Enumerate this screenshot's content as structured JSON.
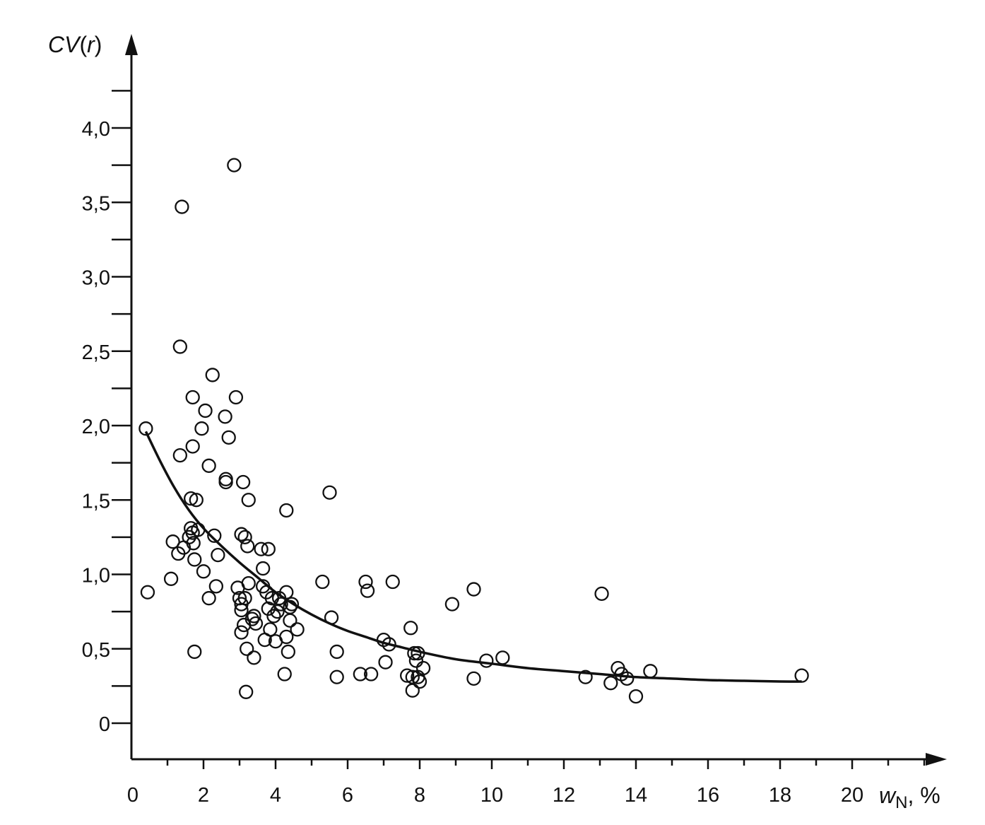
{
  "chart_data": {
    "type": "scatter",
    "title": "",
    "xlabel": {
      "var": "w",
      "sub": "N",
      "unit": ", %"
    },
    "ylabel": {
      "prefix": "CV",
      "open": "(",
      "var": "r",
      "close": ")"
    },
    "xlim": [
      0,
      22
    ],
    "ylim": [
      -0.2,
      4.6
    ],
    "x_tick_labels": [
      "0",
      "2",
      "4",
      "6",
      "8",
      "10",
      "12",
      "14",
      "16",
      "18",
      "20"
    ],
    "x_tick_values": [
      0,
      2,
      4,
      6,
      8,
      10,
      12,
      14,
      16,
      18,
      20
    ],
    "x_minor_step": 1,
    "y_tick_labels": [
      "0",
      "0,5",
      "1,0",
      "1,5",
      "2,0",
      "2,5",
      "3,0",
      "3,5",
      "4,0"
    ],
    "y_tick_values": [
      0,
      0.5,
      1.0,
      1.5,
      2.0,
      2.5,
      3.0,
      3.5,
      4.0
    ],
    "y_minor_step": 0.25,
    "grid": false,
    "legend": "none",
    "series": [
      {
        "kind": "points",
        "marker": "open-circle",
        "points": [
          [
            0.4,
            1.98
          ],
          [
            0.45,
            0.88
          ],
          [
            1.1,
            0.97
          ],
          [
            1.15,
            1.22
          ],
          [
            1.3,
            1.14
          ],
          [
            1.35,
            2.53
          ],
          [
            1.35,
            1.8
          ],
          [
            1.4,
            3.47
          ],
          [
            1.45,
            1.18
          ],
          [
            1.6,
            1.25
          ],
          [
            1.65,
            1.51
          ],
          [
            1.65,
            1.31
          ],
          [
            1.7,
            2.19
          ],
          [
            1.7,
            1.86
          ],
          [
            1.7,
            1.28
          ],
          [
            1.72,
            1.21
          ],
          [
            1.75,
            1.1
          ],
          [
            1.75,
            0.48
          ],
          [
            1.8,
            1.5
          ],
          [
            1.85,
            1.3
          ],
          [
            1.95,
            1.98
          ],
          [
            2.0,
            1.02
          ],
          [
            2.05,
            2.1
          ],
          [
            2.15,
            1.73
          ],
          [
            2.15,
            0.84
          ],
          [
            2.25,
            2.34
          ],
          [
            2.3,
            1.26
          ],
          [
            2.35,
            0.92
          ],
          [
            2.4,
            1.13
          ],
          [
            2.6,
            2.06
          ],
          [
            2.62,
            1.64
          ],
          [
            2.62,
            1.62
          ],
          [
            2.7,
            1.92
          ],
          [
            2.85,
            3.75
          ],
          [
            2.9,
            2.19
          ],
          [
            2.95,
            0.91
          ],
          [
            3.0,
            0.84
          ],
          [
            3.05,
            1.27
          ],
          [
            3.05,
            0.8
          ],
          [
            3.05,
            0.76
          ],
          [
            3.05,
            0.61
          ],
          [
            3.1,
            1.62
          ],
          [
            3.12,
            0.66
          ],
          [
            3.15,
            1.25
          ],
          [
            3.15,
            0.84
          ],
          [
            3.18,
            0.21
          ],
          [
            3.2,
            0.5
          ],
          [
            3.22,
            1.19
          ],
          [
            3.25,
            1.5
          ],
          [
            3.25,
            0.94
          ],
          [
            3.35,
            0.7
          ],
          [
            3.4,
            0.72
          ],
          [
            3.4,
            0.44
          ],
          [
            3.45,
            0.67
          ],
          [
            3.6,
            1.17
          ],
          [
            3.65,
            1.04
          ],
          [
            3.65,
            0.92
          ],
          [
            3.7,
            0.56
          ],
          [
            3.75,
            0.88
          ],
          [
            3.8,
            1.17
          ],
          [
            3.8,
            0.77
          ],
          [
            3.85,
            0.63
          ],
          [
            3.9,
            0.84
          ],
          [
            3.95,
            0.72
          ],
          [
            4.0,
            0.55
          ],
          [
            4.05,
            0.75
          ],
          [
            4.1,
            0.84
          ],
          [
            4.15,
            0.8
          ],
          [
            4.25,
            0.33
          ],
          [
            4.3,
            0.88
          ],
          [
            4.3,
            1.43
          ],
          [
            4.3,
            0.58
          ],
          [
            4.35,
            0.48
          ],
          [
            4.4,
            0.69
          ],
          [
            4.4,
            0.78
          ],
          [
            4.45,
            0.8
          ],
          [
            4.6,
            0.63
          ],
          [
            5.3,
            0.95
          ],
          [
            5.5,
            1.55
          ],
          [
            5.55,
            0.71
          ],
          [
            5.7,
            0.48
          ],
          [
            5.7,
            0.31
          ],
          [
            6.35,
            0.33
          ],
          [
            6.5,
            0.95
          ],
          [
            6.55,
            0.89
          ],
          [
            6.65,
            0.33
          ],
          [
            7.0,
            0.56
          ],
          [
            7.05,
            0.41
          ],
          [
            7.15,
            0.53
          ],
          [
            7.25,
            0.95
          ],
          [
            7.65,
            0.32
          ],
          [
            7.75,
            0.64
          ],
          [
            7.8,
            0.31
          ],
          [
            7.8,
            0.22
          ],
          [
            7.85,
            0.47
          ],
          [
            7.9,
            0.42
          ],
          [
            7.95,
            0.47
          ],
          [
            7.95,
            0.31
          ],
          [
            8.0,
            0.28
          ],
          [
            8.1,
            0.37
          ],
          [
            8.9,
            0.8
          ],
          [
            9.5,
            0.9
          ],
          [
            9.5,
            0.3
          ],
          [
            9.85,
            0.42
          ],
          [
            10.3,
            0.44
          ],
          [
            12.6,
            0.31
          ],
          [
            13.05,
            0.87
          ],
          [
            13.3,
            0.27
          ],
          [
            13.5,
            0.37
          ],
          [
            13.6,
            0.33
          ],
          [
            13.75,
            0.3
          ],
          [
            14.0,
            0.18
          ],
          [
            14.4,
            0.35
          ],
          [
            18.6,
            0.32
          ]
        ]
      },
      {
        "kind": "curve",
        "points": [
          [
            0.4,
            1.96
          ],
          [
            0.8,
            1.76
          ],
          [
            1.2,
            1.58
          ],
          [
            1.6,
            1.43
          ],
          [
            2.0,
            1.31
          ],
          [
            2.5,
            1.19
          ],
          [
            3.0,
            1.08
          ],
          [
            3.5,
            0.98
          ],
          [
            4.0,
            0.88
          ],
          [
            4.5,
            0.8
          ],
          [
            5.0,
            0.73
          ],
          [
            5.5,
            0.67
          ],
          [
            6.0,
            0.62
          ],
          [
            6.5,
            0.58
          ],
          [
            7.0,
            0.54
          ],
          [
            7.5,
            0.51
          ],
          [
            8.0,
            0.48
          ],
          [
            9.0,
            0.43
          ],
          [
            10.0,
            0.4
          ],
          [
            11.0,
            0.37
          ],
          [
            12.0,
            0.35
          ],
          [
            13.0,
            0.33
          ],
          [
            14.0,
            0.31
          ],
          [
            15.0,
            0.3
          ],
          [
            16.0,
            0.29
          ],
          [
            17.0,
            0.285
          ],
          [
            18.0,
            0.28
          ],
          [
            18.6,
            0.28
          ]
        ]
      }
    ]
  }
}
